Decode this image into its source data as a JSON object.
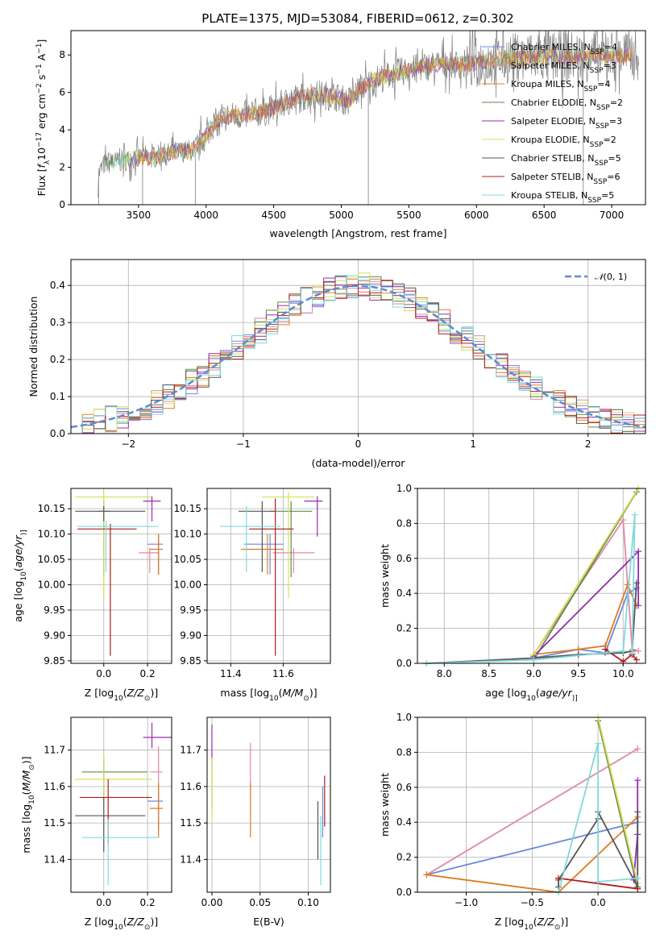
{
  "figure": {
    "title": "PLATE=1375, MJD=53084, FIBERID=0612, z=0.302"
  },
  "colors": {
    "Chabrier MILES": "#6a89d8",
    "Salpeter MILES": "#e08a9f",
    "Kroupa MILES": "#e07a22",
    "Chabrier ELODIE": "#5e8a4e",
    "Salpeter ELODIE": "#9c2ab0",
    "Kroupa ELODIE": "#d4e05a",
    "Chabrier STELIB": "#555555",
    "Salpeter STELIB": "#b01c1c",
    "Kroupa STELIB": "#82d8dc",
    "normal": "#5b8bd0",
    "grid": "#b0b0b0"
  },
  "chart_data": [
    {
      "id": "spectrum",
      "type": "line",
      "title": "PLATE=1375, MJD=53084, FIBERID=0612, z=0.302",
      "xlabel": "wavelength [Angstrom, rest frame]",
      "ylabel_parts": [
        "Flux [",
        "f",
        "λ",
        "10",
        "−17",
        " erg cm",
        "−2",
        " s",
        "−1",
        " A",
        "−1",
        "]"
      ],
      "xlim": [
        3000,
        7250
      ],
      "ylim": [
        0,
        9.3
      ],
      "xticks": [
        3500,
        4000,
        4500,
        5000,
        5500,
        6000,
        6500,
        7000
      ],
      "yticks": [
        0,
        2,
        4,
        6,
        8
      ],
      "grid": false,
      "legend_position": "top-right",
      "continuum_points": [
        [
          3200,
          1.6
        ],
        [
          3250,
          2.2
        ],
        [
          3350,
          2.3
        ],
        [
          3500,
          2.5
        ],
        [
          3600,
          2.5
        ],
        [
          3750,
          2.8
        ],
        [
          3900,
          2.9
        ],
        [
          3980,
          3.5
        ],
        [
          4050,
          4.3
        ],
        [
          4150,
          4.7
        ],
        [
          4300,
          4.8
        ],
        [
          4450,
          5.0
        ],
        [
          4600,
          5.5
        ],
        [
          4800,
          5.9
        ],
        [
          4950,
          5.8
        ],
        [
          5050,
          5.5
        ],
        [
          5150,
          6.3
        ],
        [
          5300,
          6.8
        ],
        [
          5500,
          7.2
        ],
        [
          5700,
          7.5
        ],
        [
          5900,
          7.5
        ],
        [
          6000,
          7.6
        ],
        [
          6200,
          7.8
        ],
        [
          6500,
          7.9
        ],
        [
          6800,
          7.9
        ],
        [
          7000,
          8.0
        ]
      ],
      "series": [
        {
          "name": "Chabrier MILES",
          "nssp": 4
        },
        {
          "name": "Salpeter MILES",
          "nssp": 3
        },
        {
          "name": "Kroupa MILES",
          "nssp": 4
        },
        {
          "name": "Chabrier ELODIE",
          "nssp": 2
        },
        {
          "name": "Salpeter ELODIE",
          "nssp": 3
        },
        {
          "name": "Kroupa ELODIE",
          "nssp": 2
        },
        {
          "name": "Chabrier STELIB",
          "nssp": 5
        },
        {
          "name": "Salpeter STELIB",
          "nssp": 6
        },
        {
          "name": "Kroupa STELIB",
          "nssp": 5
        }
      ]
    },
    {
      "id": "residuals",
      "type": "line",
      "xlabel": "(data-model)/error",
      "ylabel": "Normed distribution",
      "xlim": [
        -2.5,
        2.5
      ],
      "ylim": [
        0,
        0.47
      ],
      "xticks": [
        -2,
        -1,
        0,
        1,
        2
      ],
      "yticks": [
        0.0,
        0.1,
        0.2,
        0.3,
        0.4
      ],
      "grid": true,
      "legend_position": "top-right",
      "legend_label_parts": [
        "𝒩",
        "(0, 1)"
      ],
      "bin_width": 0.1
    },
    {
      "id": "age_vs_Z",
      "type": "scatter",
      "xlabel_parts": [
        "Z [log",
        "10",
        "(",
        "Z/Z",
        "⊙",
        ")]"
      ],
      "ylabel_parts": [
        "age  [log",
        "10",
        "(",
        "age/yr",
        ")]"
      ],
      "xlim": [
        -0.15,
        0.31
      ],
      "ylim": [
        9.845,
        10.19
      ],
      "xticks": [
        0.0,
        0.2
      ],
      "yticks": [
        9.85,
        9.9,
        9.95,
        10.0,
        10.05,
        10.1,
        10.15
      ],
      "grid": true,
      "points": [
        {
          "series": "Chabrier MILES",
          "x": 0.25,
          "y": 10.08,
          "xerr": [
            0.05,
            0.02
          ],
          "yerr": [
            0.06,
            0.02
          ]
        },
        {
          "series": "Salpeter MILES",
          "x": 0.21,
          "y": 10.063,
          "xerr": [
            0.05,
            0.04
          ],
          "yerr": [
            0.04,
            0.01
          ]
        },
        {
          "series": "Kroupa MILES",
          "x": 0.25,
          "y": 10.07,
          "xerr": [
            0.04,
            0.02
          ],
          "yerr": [
            0.05,
            0.03
          ]
        },
        {
          "series": "Chabrier ELODIE",
          "x": 0.0,
          "y": 10.145,
          "xerr": [
            0.03,
            0.03
          ],
          "yerr": [
            0.13,
            0.02
          ]
        },
        {
          "series": "Salpeter ELODIE",
          "x": 0.22,
          "y": 10.165,
          "xerr": [
            0.04,
            0.04
          ],
          "yerr": [
            0.04,
            0.01
          ]
        },
        {
          "series": "Kroupa ELODIE",
          "x": 0.0,
          "y": 10.173,
          "xerr": [
            0.13,
            0.22
          ],
          "yerr": [
            0.2,
            0.01
          ]
        },
        {
          "series": "Chabrier STELIB",
          "x": 0.0,
          "y": 10.145,
          "xerr": [
            0.13,
            0.19
          ],
          "yerr": [
            0.02,
            0.01
          ]
        },
        {
          "series": "Salpeter STELIB",
          "x": 0.03,
          "y": 10.11,
          "xerr": [
            0.15,
            0.12
          ],
          "yerr": [
            0.25,
            0.01
          ]
        },
        {
          "series": "Kroupa STELIB",
          "x": 0.01,
          "y": 10.115,
          "xerr": [
            0.13,
            0.24
          ],
          "yerr": [
            0.09,
            0.01
          ]
        }
      ]
    },
    {
      "id": "age_vs_mass",
      "type": "scatter",
      "xlabel_parts": [
        "mass [log",
        "10",
        "(",
        "M/M",
        "⊙",
        ")]"
      ],
      "xlim": [
        11.31,
        11.78
      ],
      "ylim": [
        9.845,
        10.19
      ],
      "xticks": [
        11.4,
        11.6
      ],
      "yticks": [
        9.85,
        9.9,
        9.95,
        10.0,
        10.05,
        10.1,
        10.15
      ],
      "grid": true,
      "points": [
        {
          "series": "Chabrier MILES",
          "x": 11.55,
          "y": 10.08,
          "xerr": [
            0.1,
            0.05
          ],
          "yerr": [
            0.06,
            0.02
          ]
        },
        {
          "series": "Salpeter MILES",
          "x": 11.64,
          "y": 10.063,
          "xerr": [
            0.08,
            0.08
          ],
          "yerr": [
            0.04,
            0.01
          ]
        },
        {
          "series": "Kroupa MILES",
          "x": 11.54,
          "y": 10.07,
          "xerr": [
            0.1,
            0.06
          ],
          "yerr": [
            0.05,
            0.03
          ]
        },
        {
          "series": "Chabrier ELODIE",
          "x": 11.63,
          "y": 10.145,
          "xerr": [
            0.08,
            0.08
          ],
          "yerr": [
            0.13,
            0.02
          ]
        },
        {
          "series": "Salpeter ELODIE",
          "x": 11.73,
          "y": 10.165,
          "xerr": [
            0.05,
            0.02
          ],
          "yerr": [
            0.07,
            0.01
          ]
        },
        {
          "series": "Kroupa ELODIE",
          "x": 11.62,
          "y": 10.173,
          "xerr": [
            0.1,
            0.1
          ],
          "yerr": [
            0.2,
            0.01
          ]
        },
        {
          "series": "Chabrier STELIB",
          "x": 11.52,
          "y": 10.145,
          "xerr": [
            0.09,
            0.05
          ],
          "yerr": [
            0.12,
            0.02
          ]
        },
        {
          "series": "Salpeter STELIB",
          "x": 11.57,
          "y": 10.11,
          "xerr": [
            0.1,
            0.07
          ],
          "yerr": [
            0.25,
            0.06
          ]
        },
        {
          "series": "Kroupa STELIB",
          "x": 11.46,
          "y": 10.115,
          "xerr": [
            0.1,
            0.13
          ],
          "yerr": [
            0.09,
            0.04
          ]
        }
      ]
    },
    {
      "id": "weight_vs_age",
      "type": "line",
      "xlabel_parts": [
        "age  [log",
        "10",
        "(",
        "age/yr",
        ")]"
      ],
      "ylabel": "mass weight",
      "xlim": [
        7.7,
        10.25
      ],
      "ylim": [
        0,
        1.0
      ],
      "xticks": [
        8.0,
        8.5,
        9.0,
        9.5,
        10.0
      ],
      "yticks": [
        0.0,
        0.2,
        0.4,
        0.6,
        0.8,
        1.0
      ],
      "grid": true,
      "series": [
        {
          "name": "Chabrier MILES",
          "x": [
            9.0,
            9.5,
            9.8,
            10.05,
            10.15
          ],
          "y": [
            0.03,
            0.08,
            0.06,
            0.4,
            0.43
          ]
        },
        {
          "name": "Salpeter MILES",
          "x": [
            9.0,
            10.0,
            10.1,
            10.17
          ],
          "y": [
            0.05,
            0.82,
            0.08,
            0.07
          ]
        },
        {
          "name": "Kroupa MILES",
          "x": [
            9.0,
            9.5,
            9.8,
            10.05,
            10.15
          ],
          "y": [
            0.05,
            0.08,
            0.1,
            0.45,
            0.33
          ]
        },
        {
          "name": "Chabrier ELODIE",
          "x": [
            9.0,
            10.15
          ],
          "y": [
            0.02,
            0.98
          ]
        },
        {
          "name": "Salpeter ELODIE",
          "x": [
            9.0,
            10.17,
            10.17
          ],
          "y": [
            0.04,
            0.64,
            0.33
          ]
        },
        {
          "name": "Kroupa ELODIE",
          "x": [
            9.0,
            10.17
          ],
          "y": [
            0.05,
            1.0
          ]
        },
        {
          "name": "Chabrier STELIB",
          "x": [
            7.8,
            9.0,
            9.5,
            10.0,
            10.1,
            10.15
          ],
          "y": [
            0.0,
            0.03,
            0.05,
            0.06,
            0.07,
            0.46
          ]
        },
        {
          "name": "Salpeter STELIB",
          "x": [
            9.8,
            10.0,
            10.1,
            10.15
          ],
          "y": [
            0.08,
            0.01,
            0.05,
            0.02
          ]
        },
        {
          "name": "Kroupa STELIB",
          "x": [
            7.8,
            9.0,
            10.0,
            10.13,
            10.1
          ],
          "y": [
            0.0,
            0.02,
            0.07,
            0.85,
            0.06
          ]
        }
      ]
    },
    {
      "id": "mass_vs_Z",
      "type": "scatter",
      "xlabel_parts": [
        "Z [log",
        "10",
        "(",
        "Z/Z",
        "⊙",
        ")]"
      ],
      "ylabel_parts": [
        "mass [log",
        "10",
        "(",
        "M/M",
        "⊙",
        ")]"
      ],
      "xlim": [
        -0.15,
        0.31
      ],
      "ylim": [
        11.31,
        11.79
      ],
      "xticks": [
        0.0,
        0.2
      ],
      "yticks": [
        11.4,
        11.5,
        11.6,
        11.7
      ],
      "grid": true,
      "points": [
        {
          "series": "Chabrier MILES",
          "x": 0.25,
          "y": 11.56,
          "xerr": [
            0.05,
            0.02
          ],
          "yerr": [
            0.08,
            0.04
          ]
        },
        {
          "series": "Salpeter MILES",
          "x": 0.25,
          "y": 11.64,
          "xerr": [
            0.04,
            0.02
          ],
          "yerr": [
            0.05,
            0.07
          ]
        },
        {
          "series": "Kroupa MILES",
          "x": 0.25,
          "y": 11.54,
          "xerr": [
            0.04,
            0.02
          ],
          "yerr": [
            0.08,
            0.07
          ]
        },
        {
          "series": "Chabrier ELODIE",
          "x": 0.0,
          "y": 11.64,
          "xerr": [
            0.1,
            0.2
          ],
          "yerr": [
            0.08,
            0.04
          ]
        },
        {
          "series": "Salpeter ELODIE",
          "x": 0.22,
          "y": 11.735,
          "xerr": [
            0.04,
            0.09
          ],
          "yerr": [
            0.03,
            0.04
          ]
        },
        {
          "series": "Kroupa ELODIE",
          "x": 0.0,
          "y": 11.62,
          "xerr": [
            0.13,
            0.22
          ],
          "yerr": [
            0.06,
            0.07
          ]
        },
        {
          "series": "Chabrier STELIB",
          "x": 0.0,
          "y": 11.52,
          "xerr": [
            0.13,
            0.19
          ],
          "yerr": [
            0.1,
            0.05
          ]
        },
        {
          "series": "Salpeter STELIB",
          "x": 0.02,
          "y": 11.57,
          "xerr": [
            0.13,
            0.2
          ],
          "yerr": [
            0.13,
            0.05
          ]
        },
        {
          "series": "Kroupa STELIB",
          "x": 0.02,
          "y": 11.46,
          "xerr": [
            0.12,
            0.23
          ],
          "yerr": [
            0.13,
            0.05
          ]
        }
      ]
    },
    {
      "id": "mass_vs_ebv",
      "type": "scatter",
      "xlabel": "E(B-V)",
      "xlim": [
        -0.005,
        0.123
      ],
      "ylim": [
        11.31,
        11.79
      ],
      "xticks": [
        0.0,
        0.05,
        0.1
      ],
      "yticks": [
        11.4,
        11.5,
        11.6,
        11.7
      ],
      "grid": true,
      "points": [
        {
          "series": "Chabrier MILES",
          "x": 0.115,
          "y": 11.56,
          "yerr": [
            0.1,
            0.04
          ]
        },
        {
          "series": "Salpeter MILES",
          "x": 0.04,
          "y": 11.64,
          "yerr": [
            0.05,
            0.08
          ]
        },
        {
          "series": "Kroupa MILES",
          "x": 0.04,
          "y": 11.54,
          "yerr": [
            0.08,
            0.07
          ]
        },
        {
          "series": "Chabrier ELODIE",
          "x": 0.0,
          "y": 11.64,
          "yerr": [
            0.1,
            0.04
          ]
        },
        {
          "series": "Salpeter ELODIE",
          "x": 0.0,
          "y": 11.73,
          "yerr": [
            0.06,
            0.04
          ]
        },
        {
          "series": "Kroupa ELODIE",
          "x": 0.0,
          "y": 11.62,
          "yerr": [
            0.12,
            0.06
          ]
        },
        {
          "series": "Chabrier STELIB",
          "x": 0.11,
          "y": 11.5,
          "yerr": [
            0.1,
            0.06
          ]
        },
        {
          "series": "Salpeter STELIB",
          "x": 0.117,
          "y": 11.57,
          "yerr": [
            0.08,
            0.06
          ]
        },
        {
          "series": "Kroupa STELIB",
          "x": 0.113,
          "y": 11.45,
          "yerr": [
            0.12,
            0.07
          ]
        }
      ]
    },
    {
      "id": "weight_vs_Z",
      "type": "line",
      "xlabel_parts": [
        "Z [log",
        "10",
        "(",
        "Z/Z",
        "⊙",
        ")]"
      ],
      "ylabel": "mass weight",
      "xlim": [
        -1.37,
        0.36
      ],
      "ylim": [
        0,
        1.0
      ],
      "xticks": [
        -1.0,
        -0.5,
        0.0
      ],
      "yticks": [
        0.0,
        0.2,
        0.4,
        0.6,
        0.8,
        1.0
      ],
      "grid": true,
      "series": [
        {
          "name": "Chabrier MILES",
          "x": [
            -1.3,
            0.3
          ],
          "y": [
            0.1,
            0.4
          ]
        },
        {
          "name": "Salpeter MILES",
          "x": [
            -1.3,
            0.3
          ],
          "y": [
            0.1,
            0.82
          ]
        },
        {
          "name": "Kroupa MILES",
          "x": [
            -1.3,
            -0.3,
            0.3
          ],
          "y": [
            0.1,
            0.0,
            0.43
          ]
        },
        {
          "name": "Chabrier ELODIE",
          "x": [
            0.0,
            0.3
          ],
          "y": [
            0.98,
            0.02
          ]
        },
        {
          "name": "Salpeter ELODIE",
          "x": [
            0.3,
            0.3,
            0.27
          ],
          "y": [
            0.64,
            0.33,
            0.07
          ]
        },
        {
          "name": "Kroupa ELODIE",
          "x": [
            0.0,
            0.3
          ],
          "y": [
            1.0,
            0.05
          ]
        },
        {
          "name": "Chabrier STELIB",
          "x": [
            -0.3,
            -0.3,
            0.0,
            0.0,
            0.3,
            0.3
          ],
          "y": [
            0.03,
            0.07,
            0.42,
            0.46,
            0.03,
            0.46
          ]
        },
        {
          "name": "Salpeter STELIB",
          "x": [
            -0.3,
            0.3
          ],
          "y": [
            0.08,
            0.02
          ]
        },
        {
          "name": "Kroupa STELIB",
          "x": [
            -0.3,
            0.0,
            0.0,
            0.3
          ],
          "y": [
            0.0,
            0.85,
            0.06,
            0.08
          ]
        }
      ]
    }
  ]
}
